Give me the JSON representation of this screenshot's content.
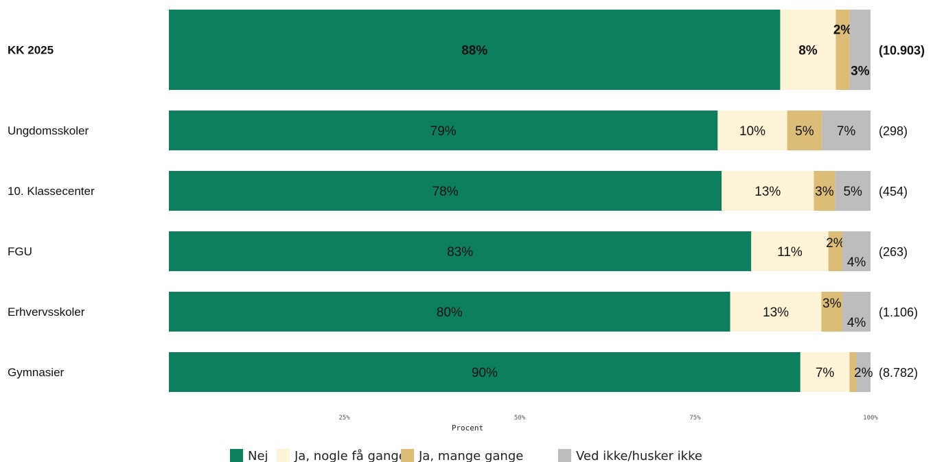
{
  "chart_data": {
    "type": "bar",
    "orientation": "horizontal",
    "stacked": true,
    "categories": [
      "KK 2025",
      "Ungdomsskoler",
      "10. Klassecenter",
      "FGU",
      "Erhvervsskoler",
      "Gymnasier"
    ],
    "highlight_category": "KK 2025",
    "n_labels": [
      "(10.903)",
      "(298)",
      "(454)",
      "(263)",
      "(1.106)",
      "(8.782)"
    ],
    "series": [
      {
        "name": "Nej",
        "color": "#0e7f5e",
        "values": [
          88,
          79,
          78,
          83,
          80,
          90
        ],
        "labels": [
          "88%",
          "79%",
          "78%",
          "83%",
          "80%",
          "90%"
        ]
      },
      {
        "name": "Ja, nogle få gange",
        "color": "#fdf4d8",
        "values": [
          8,
          10,
          13,
          11,
          13,
          7
        ],
        "labels": [
          "8%",
          "10%",
          "13%",
          "11%",
          "13%",
          "7%"
        ]
      },
      {
        "name": "Ja, mange gange",
        "color": "#dcbd78",
        "values": [
          2,
          5,
          3,
          2,
          3,
          1
        ],
        "labels": [
          "2%",
          "5%",
          "3%",
          "2%",
          "3%",
          ""
        ]
      },
      {
        "name": "Ved ikke/husker ikke",
        "color": "#bdbdbd",
        "values": [
          3,
          7,
          5,
          4,
          4,
          2
        ],
        "labels": [
          "3%",
          "7%",
          "5%",
          "4%",
          "4%",
          "2%"
        ]
      }
    ],
    "xlabel": "Procent",
    "xticks": [
      "25%",
      "50%",
      "75%",
      "100%"
    ],
    "xtick_values": [
      25,
      50,
      75,
      100
    ],
    "xlim": [
      0,
      100
    ],
    "grid": false,
    "legend_position": "bottom"
  }
}
